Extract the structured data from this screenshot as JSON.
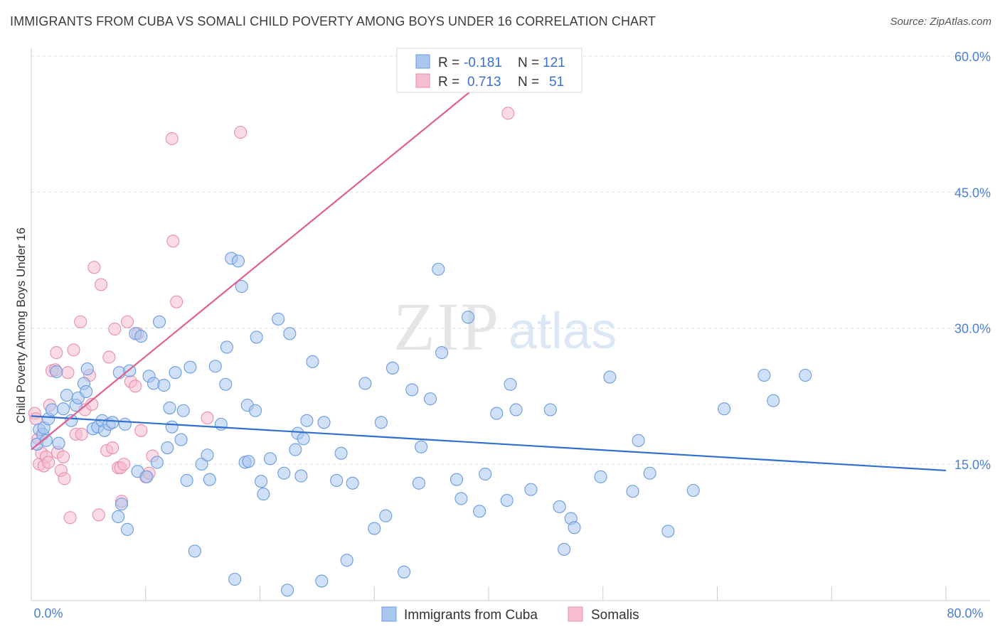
{
  "title": "IMMIGRANTS FROM CUBA VS SOMALI CHILD POVERTY AMONG BOYS UNDER 16 CORRELATION CHART",
  "source": "Source: ZipAtlas.com",
  "watermark": {
    "zip": "ZIP",
    "atlas": "atlas"
  },
  "colors": {
    "cuba_fill": "#a9c7ef",
    "cuba_stroke": "#6b9bde",
    "cuba_line": "#2f6fd0",
    "somali_fill": "#f6bcd0",
    "somali_stroke": "#e88fae",
    "somali_line": "#e0608c",
    "grid": "#d8dce3",
    "tick_text": "#4a7fd6"
  },
  "legend": {
    "rows": [
      {
        "r_label": "R =",
        "r_value": "-0.181",
        "n_label": "N =",
        "n_value": "121"
      },
      {
        "r_label": "R =",
        "r_value": "0.713",
        "n_label": "N =",
        "n_value": "51"
      }
    ]
  },
  "bottom_legend": [
    "Immigrants from Cuba",
    "Somalis"
  ],
  "chart_data": {
    "type": "scatter",
    "title": "IMMIGRANTS FROM CUBA VS SOMALI CHILD POVERTY AMONG BOYS UNDER 16 CORRELATION CHART",
    "xlabel": "",
    "ylabel": "Child Poverty Among Boys Under 16",
    "xlim": [
      0,
      80
    ],
    "ylim": [
      0,
      63
    ],
    "x_tick_labels": [
      "0.0%",
      "80.0%"
    ],
    "y_ticks": [
      15,
      30,
      45,
      60
    ],
    "y_tick_labels": [
      "15.0%",
      "30.0%",
      "45.0%",
      "60.0%"
    ],
    "grid": true,
    "legend_position": "top-center",
    "series": [
      {
        "name": "Immigrants from Cuba",
        "r": -0.181,
        "n": 121,
        "trend": [
          [
            0,
            20.3
          ],
          [
            80,
            14.3
          ]
        ],
        "points": [
          [
            0.5,
            17.2
          ],
          [
            0.7,
            18.8
          ],
          [
            1.0,
            18.3
          ],
          [
            1.1,
            19.0
          ],
          [
            1.3,
            17.6
          ],
          [
            1.5,
            20.0
          ],
          [
            1.8,
            21.0
          ],
          [
            2.2,
            25.2
          ],
          [
            2.4,
            17.3
          ],
          [
            2.8,
            21.1
          ],
          [
            3.1,
            22.6
          ],
          [
            3.5,
            19.8
          ],
          [
            3.9,
            21.5
          ],
          [
            4.1,
            22.3
          ],
          [
            4.6,
            23.9
          ],
          [
            4.8,
            23.0
          ],
          [
            4.9,
            25.5
          ],
          [
            5.4,
            18.9
          ],
          [
            5.8,
            19.1
          ],
          [
            6.2,
            19.8
          ],
          [
            6.4,
            18.7
          ],
          [
            6.8,
            19.4
          ],
          [
            7.1,
            19.6
          ],
          [
            7.6,
            9.2
          ],
          [
            7.7,
            25.1
          ],
          [
            7.9,
            10.6
          ],
          [
            8.2,
            19.4
          ],
          [
            8.4,
            7.8
          ],
          [
            8.6,
            25.3
          ],
          [
            9.1,
            29.4
          ],
          [
            9.3,
            14.2
          ],
          [
            9.6,
            29.1
          ],
          [
            10.1,
            13.6
          ],
          [
            10.3,
            24.7
          ],
          [
            10.7,
            23.9
          ],
          [
            11.0,
            15.2
          ],
          [
            11.2,
            30.7
          ],
          [
            11.6,
            23.7
          ],
          [
            11.9,
            16.8
          ],
          [
            12.1,
            21.2
          ],
          [
            12.3,
            19.1
          ],
          [
            12.6,
            25.1
          ],
          [
            13.1,
            17.7
          ],
          [
            13.3,
            20.9
          ],
          [
            13.6,
            13.2
          ],
          [
            13.9,
            25.7
          ],
          [
            14.3,
            5.4
          ],
          [
            14.9,
            15.0
          ],
          [
            15.4,
            16.0
          ],
          [
            15.6,
            13.3
          ],
          [
            16.1,
            25.8
          ],
          [
            16.6,
            19.4
          ],
          [
            17.0,
            23.8
          ],
          [
            17.1,
            27.9
          ],
          [
            17.5,
            37.7
          ],
          [
            17.8,
            2.3
          ],
          [
            18.1,
            37.4
          ],
          [
            18.4,
            34.6
          ],
          [
            18.7,
            15.2
          ],
          [
            18.9,
            21.5
          ],
          [
            19.0,
            15.3
          ],
          [
            19.6,
            20.9
          ],
          [
            19.7,
            29.0
          ],
          [
            20.1,
            13.1
          ],
          [
            20.3,
            11.7
          ],
          [
            20.9,
            15.6
          ],
          [
            21.6,
            31.0
          ],
          [
            22.1,
            14.0
          ],
          [
            22.4,
            1.1
          ],
          [
            22.6,
            29.4
          ],
          [
            23.1,
            16.6
          ],
          [
            23.3,
            18.4
          ],
          [
            23.6,
            13.7
          ],
          [
            23.8,
            17.8
          ],
          [
            24.1,
            19.8
          ],
          [
            24.6,
            26.3
          ],
          [
            25.4,
            2.1
          ],
          [
            25.6,
            19.6
          ],
          [
            26.7,
            13.2
          ],
          [
            27.1,
            16.2
          ],
          [
            27.6,
            4.4
          ],
          [
            28.1,
            12.9
          ],
          [
            29.2,
            23.9
          ],
          [
            30.0,
            7.9
          ],
          [
            30.6,
            19.6
          ],
          [
            31.0,
            9.3
          ],
          [
            31.6,
            25.6
          ],
          [
            32.6,
            3.1
          ],
          [
            33.3,
            23.2
          ],
          [
            33.9,
            12.9
          ],
          [
            34.1,
            16.9
          ],
          [
            34.9,
            22.2
          ],
          [
            35.6,
            36.5
          ],
          [
            35.9,
            27.3
          ],
          [
            37.2,
            13.3
          ],
          [
            37.6,
            11.2
          ],
          [
            38.2,
            31.2
          ],
          [
            39.2,
            9.8
          ],
          [
            39.7,
            13.9
          ],
          [
            40.7,
            20.6
          ],
          [
            41.6,
            11.0
          ],
          [
            41.9,
            23.8
          ],
          [
            42.4,
            21.0
          ],
          [
            43.7,
            12.2
          ],
          [
            45.4,
            21.0
          ],
          [
            46.2,
            10.3
          ],
          [
            46.6,
            5.6
          ],
          [
            47.2,
            9.0
          ],
          [
            47.5,
            8.0
          ],
          [
            49.8,
            13.6
          ],
          [
            50.6,
            24.6
          ],
          [
            52.6,
            12.0
          ],
          [
            53.1,
            17.6
          ],
          [
            54.1,
            14.0
          ],
          [
            55.7,
            7.6
          ],
          [
            57.9,
            12.1
          ],
          [
            60.6,
            21.1
          ],
          [
            64.1,
            24.8
          ],
          [
            64.9,
            22.0
          ],
          [
            67.7,
            24.8
          ]
        ]
      },
      {
        "name": "Somalis",
        "r": 0.713,
        "n": 51,
        "trend": [
          [
            0,
            16.6
          ],
          [
            42,
            59.8
          ]
        ],
        "points": [
          [
            0.3,
            20.6
          ],
          [
            0.4,
            20.0
          ],
          [
            0.6,
            17.8
          ],
          [
            0.7,
            15.0
          ],
          [
            0.9,
            16.2
          ],
          [
            1.1,
            14.8
          ],
          [
            1.3,
            15.8
          ],
          [
            1.5,
            15.2
          ],
          [
            1.6,
            21.5
          ],
          [
            1.8,
            25.3
          ],
          [
            2.1,
            25.4
          ],
          [
            2.2,
            27.3
          ],
          [
            2.3,
            16.3
          ],
          [
            2.6,
            14.3
          ],
          [
            2.9,
            13.4
          ],
          [
            3.2,
            25.1
          ],
          [
            3.4,
            9.1
          ],
          [
            3.7,
            27.6
          ],
          [
            3.9,
            18.3
          ],
          [
            4.3,
            30.7
          ],
          [
            4.4,
            18.3
          ],
          [
            4.7,
            21.0
          ],
          [
            5.1,
            24.8
          ],
          [
            5.3,
            21.6
          ],
          [
            5.5,
            36.7
          ],
          [
            5.9,
            9.4
          ],
          [
            6.1,
            34.8
          ],
          [
            6.6,
            16.5
          ],
          [
            6.8,
            26.8
          ],
          [
            7.1,
            16.8
          ],
          [
            7.3,
            29.9
          ],
          [
            7.6,
            14.6
          ],
          [
            7.8,
            14.6
          ],
          [
            8.1,
            15.0
          ],
          [
            8.4,
            30.7
          ],
          [
            8.7,
            24.1
          ],
          [
            9.1,
            23.6
          ],
          [
            9.3,
            29.4
          ],
          [
            9.6,
            18.7
          ],
          [
            10.0,
            13.6
          ],
          [
            10.3,
            14.0
          ],
          [
            10.6,
            15.9
          ],
          [
            12.3,
            50.9
          ],
          [
            12.4,
            39.6
          ],
          [
            12.7,
            32.9
          ],
          [
            15.4,
            20.1
          ],
          [
            18.3,
            51.6
          ],
          [
            40.0,
            58.0
          ],
          [
            41.7,
            53.7
          ],
          [
            7.9,
            10.9
          ],
          [
            2.8,
            15.8
          ]
        ]
      }
    ]
  }
}
